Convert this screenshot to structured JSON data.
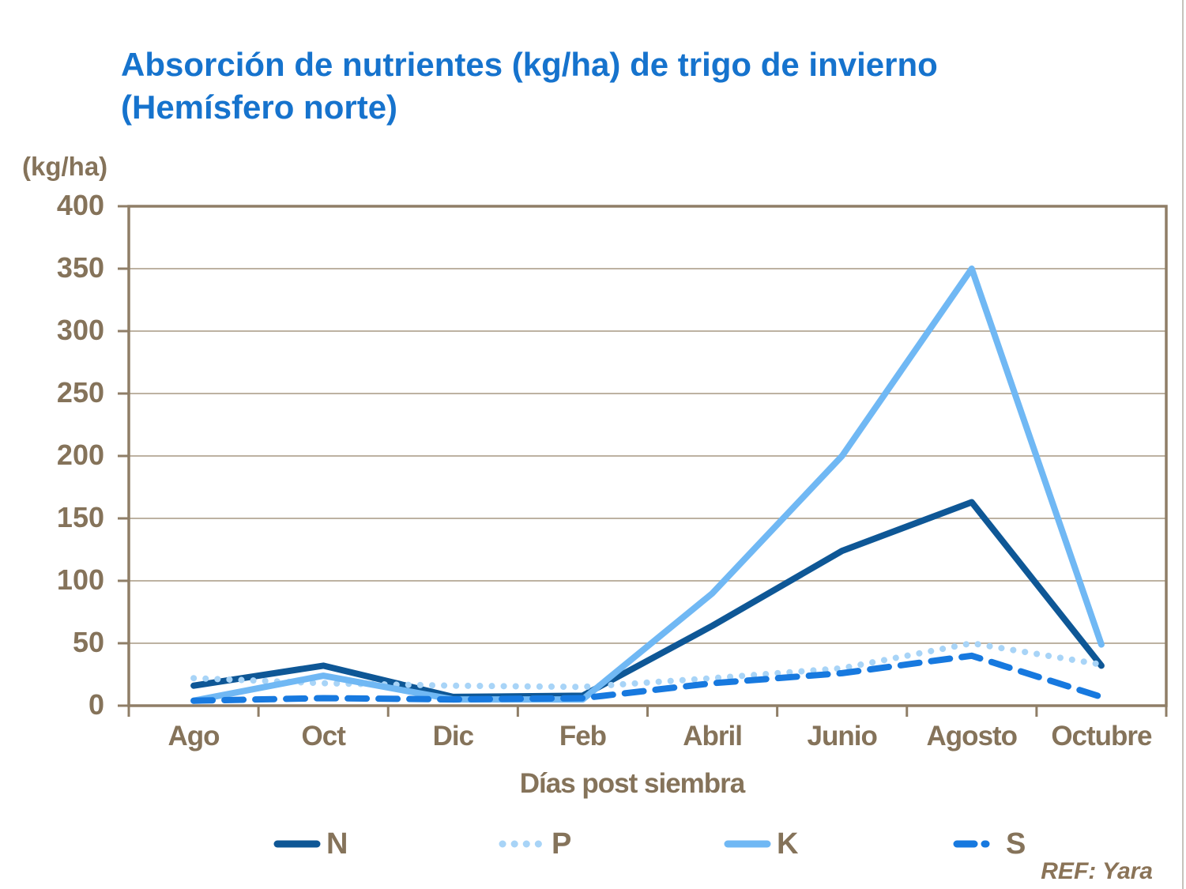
{
  "title": {
    "line1": "Absorción de nutrientes (kg/ha) de trigo de invierno",
    "line2": "(Hemísfero norte)"
  },
  "y_axis": {
    "unit_label": "(kg/ha)",
    "tick_labels": [
      "400",
      "350",
      "300",
      "250",
      "200",
      "150",
      "100",
      "50",
      "0"
    ]
  },
  "x_axis": {
    "title": "Días post siembra"
  },
  "legend": [
    {
      "label": "N",
      "style": "solid",
      "color": "#0E5796"
    },
    {
      "label": "P",
      "style": "dotted",
      "color": "#A8D4F7"
    },
    {
      "label": "K",
      "style": "solid",
      "color": "#70B8F4"
    },
    {
      "label": "S",
      "style": "dashed",
      "color": "#1779DF"
    }
  ],
  "footnote": "REF: Yara",
  "colors": {
    "title_blue": "#1673CD",
    "axis_text_brown": "#85735A",
    "frame": "#8F7E67",
    "gridline": "#BDB2A2",
    "series_n": "#0E5796",
    "series_p": "#A8D4F7",
    "series_k": "#70B8F4",
    "series_s": "#1779DF"
  },
  "chart_data": {
    "type": "line",
    "title": "Absorción de nutrientes (kg/ha) de trigo de invierno (Hemísfero norte)",
    "xlabel": "Días post siembra",
    "ylabel": "(kg/ha)",
    "categories": [
      "Ago",
      "Oct",
      "Dic",
      "Feb",
      "Abril",
      "Junio",
      "Agosto",
      "Octubre"
    ],
    "series": [
      {
        "name": "N",
        "style": "solid",
        "color": "#0E5796",
        "values": [
          16,
          32,
          7,
          8,
          64,
          124,
          163,
          32
        ]
      },
      {
        "name": "P",
        "style": "dotted",
        "color": "#A8D4F7",
        "values": [
          22,
          18,
          16,
          15,
          22,
          30,
          50,
          33
        ]
      },
      {
        "name": "K",
        "style": "solid",
        "color": "#70B8F4",
        "values": [
          4,
          24,
          5,
          5,
          90,
          200,
          350,
          49
        ]
      },
      {
        "name": "S",
        "style": "dashed",
        "color": "#1779DF",
        "values": [
          4,
          6,
          5,
          6,
          18,
          26,
          40,
          7
        ]
      }
    ],
    "ylim": [
      0,
      400
    ],
    "yticks": [
      0,
      50,
      100,
      150,
      200,
      250,
      300,
      350,
      400
    ],
    "grid": true,
    "legend_position": "bottom"
  }
}
